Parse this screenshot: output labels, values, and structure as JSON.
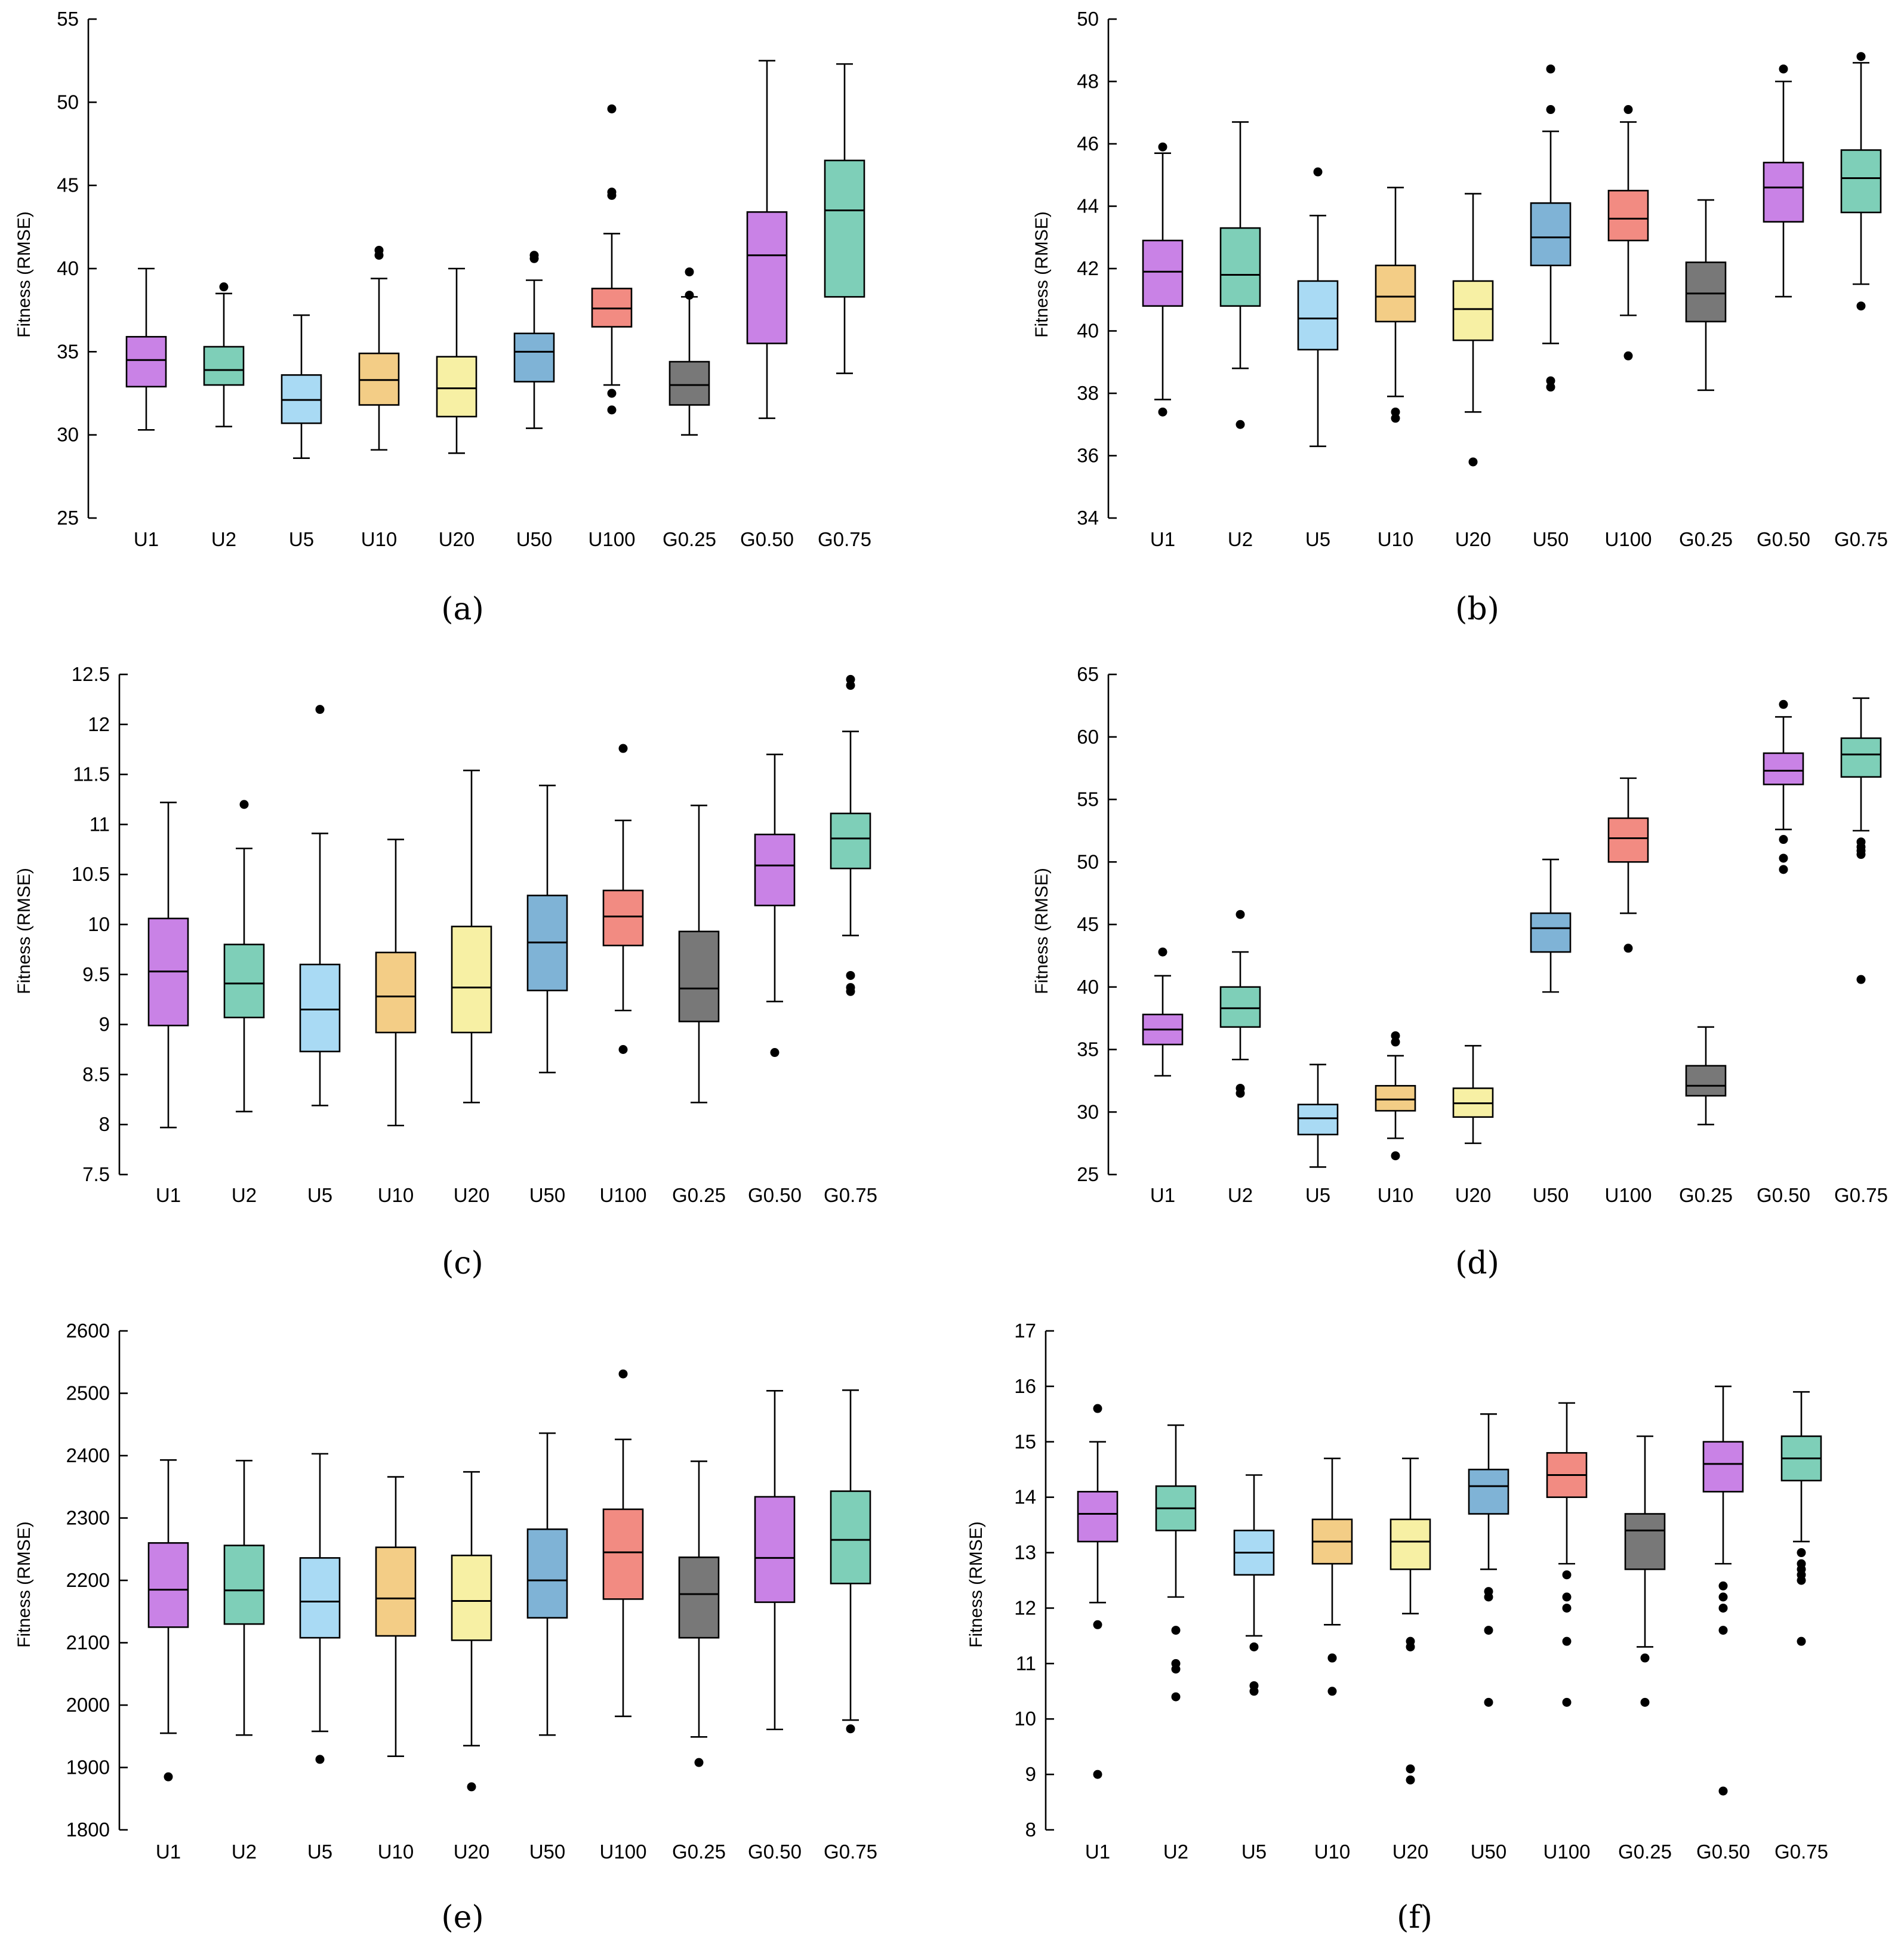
{
  "colors": {
    "purple": "#c982e6",
    "teal": "#7ecfb8",
    "lightblue": "#a9daf4",
    "orange": "#f3cd86",
    "yellow": "#f7f0a4",
    "blue": "#7fb3d6",
    "red": "#f28b82",
    "gray": "#787878"
  },
  "series_colors": [
    "purple",
    "teal",
    "lightblue",
    "orange",
    "yellow",
    "blue",
    "red",
    "gray",
    "purple",
    "teal"
  ],
  "chart_data": [
    {
      "panel": "(a)",
      "type": "box",
      "ylabel": "Fitness (RMSE)",
      "ylim": [
        25,
        55
      ],
      "yticks": [
        "25",
        "30",
        "35",
        "40",
        "45",
        "50",
        "55"
      ],
      "categories": [
        "U1",
        "U2",
        "U5",
        "U10",
        "U20",
        "U50",
        "U100",
        "G0.25",
        "G0.50",
        "G0.75"
      ],
      "boxes": [
        {
          "min": 30.3,
          "q1": 32.9,
          "median": 34.5,
          "q3": 35.9,
          "max": 40.0,
          "outliers": []
        },
        {
          "min": 30.5,
          "q1": 33.0,
          "median": 33.9,
          "q3": 35.3,
          "max": 38.5,
          "outliers": [
            38.9
          ]
        },
        {
          "min": 28.6,
          "q1": 30.7,
          "median": 32.1,
          "q3": 33.6,
          "max": 37.2,
          "outliers": []
        },
        {
          "min": 29.1,
          "q1": 31.8,
          "median": 33.3,
          "q3": 34.9,
          "max": 39.4,
          "outliers": [
            40.8,
            41.1
          ]
        },
        {
          "min": 28.9,
          "q1": 31.1,
          "median": 32.8,
          "q3": 34.7,
          "max": 40.0,
          "outliers": []
        },
        {
          "min": 30.4,
          "q1": 33.2,
          "median": 35.0,
          "q3": 36.1,
          "max": 39.3,
          "outliers": [
            40.6,
            40.8
          ]
        },
        {
          "min": 33.0,
          "q1": 36.5,
          "median": 37.6,
          "q3": 38.8,
          "max": 42.1,
          "outliers": [
            31.5,
            32.5,
            44.4,
            44.6,
            49.6
          ]
        },
        {
          "min": 30.0,
          "q1": 31.8,
          "median": 33.0,
          "q3": 34.4,
          "max": 38.3,
          "outliers": [
            38.4,
            39.8
          ]
        },
        {
          "min": 31.0,
          "q1": 35.5,
          "median": 40.8,
          "q3": 43.4,
          "max": 52.5,
          "outliers": []
        },
        {
          "min": 33.7,
          "q1": 38.3,
          "median": 43.5,
          "q3": 46.5,
          "max": 52.3,
          "outliers": []
        }
      ]
    },
    {
      "panel": "(b)",
      "type": "box",
      "ylabel": "Fitness (RMSE)",
      "ylim": [
        34,
        50
      ],
      "yticks": [
        "34",
        "36",
        "38",
        "40",
        "42",
        "44",
        "46",
        "48",
        "50"
      ],
      "categories": [
        "U1",
        "U2",
        "U5",
        "U10",
        "U20",
        "U50",
        "U100",
        "G0.25",
        "G0.50",
        "G0.75"
      ],
      "boxes": [
        {
          "min": 37.8,
          "q1": 40.8,
          "median": 41.9,
          "q3": 42.9,
          "max": 45.7,
          "outliers": [
            37.4,
            45.9
          ]
        },
        {
          "min": 38.8,
          "q1": 40.8,
          "median": 41.8,
          "q3": 43.3,
          "max": 46.7,
          "outliers": [
            37.0
          ]
        },
        {
          "min": 36.3,
          "q1": 39.4,
          "median": 40.4,
          "q3": 41.6,
          "max": 43.7,
          "outliers": [
            45.1
          ]
        },
        {
          "min": 37.9,
          "q1": 40.3,
          "median": 41.1,
          "q3": 42.1,
          "max": 44.6,
          "outliers": [
            37.2,
            37.4
          ]
        },
        {
          "min": 37.4,
          "q1": 39.7,
          "median": 40.7,
          "q3": 41.6,
          "max": 44.4,
          "outliers": [
            35.8
          ]
        },
        {
          "min": 39.6,
          "q1": 42.1,
          "median": 43.0,
          "q3": 44.1,
          "max": 46.4,
          "outliers": [
            38.2,
            38.4,
            47.1,
            48.4
          ]
        },
        {
          "min": 40.5,
          "q1": 42.9,
          "median": 43.6,
          "q3": 44.5,
          "max": 46.7,
          "outliers": [
            39.2,
            47.1
          ]
        },
        {
          "min": 38.1,
          "q1": 40.3,
          "median": 41.2,
          "q3": 42.2,
          "max": 44.2,
          "outliers": []
        },
        {
          "min": 41.1,
          "q1": 43.5,
          "median": 44.6,
          "q3": 45.4,
          "max": 48.0,
          "outliers": [
            48.4
          ]
        },
        {
          "min": 41.5,
          "q1": 43.8,
          "median": 44.9,
          "q3": 45.8,
          "max": 48.6,
          "outliers": [
            40.8,
            48.8
          ]
        }
      ]
    },
    {
      "panel": "(c)",
      "type": "box",
      "ylabel": "Fitness (RMSE)",
      "ylim": [
        7.5,
        12.5
      ],
      "yticks": [
        "7.5",
        "8",
        "8.5",
        "9",
        "9.5",
        "10",
        "10.5",
        "11",
        "11.5",
        "12",
        "12.5"
      ],
      "categories": [
        "U1",
        "U2",
        "U5",
        "U10",
        "U20",
        "U50",
        "U100",
        "G0.25",
        "G0.50",
        "G0.75"
      ],
      "boxes": [
        {
          "min": 7.97,
          "q1": 8.99,
          "median": 9.53,
          "q3": 10.06,
          "max": 11.22,
          "outliers": []
        },
        {
          "min": 8.13,
          "q1": 9.07,
          "median": 9.41,
          "q3": 9.8,
          "max": 10.76,
          "outliers": [
            11.2
          ]
        },
        {
          "min": 8.19,
          "q1": 8.73,
          "median": 9.15,
          "q3": 9.6,
          "max": 10.91,
          "outliers": [
            12.15
          ]
        },
        {
          "min": 7.99,
          "q1": 8.92,
          "median": 9.28,
          "q3": 9.72,
          "max": 10.85,
          "outliers": []
        },
        {
          "min": 8.22,
          "q1": 8.92,
          "median": 9.37,
          "q3": 9.98,
          "max": 11.54,
          "outliers": []
        },
        {
          "min": 8.52,
          "q1": 9.34,
          "median": 9.82,
          "q3": 10.29,
          "max": 11.39,
          "outliers": []
        },
        {
          "min": 9.14,
          "q1": 9.79,
          "median": 10.08,
          "q3": 10.34,
          "max": 11.04,
          "outliers": [
            8.75,
            11.76
          ]
        },
        {
          "min": 8.22,
          "q1": 9.03,
          "median": 9.36,
          "q3": 9.93,
          "max": 11.19,
          "outliers": []
        },
        {
          "min": 9.23,
          "q1": 10.19,
          "median": 10.59,
          "q3": 10.9,
          "max": 11.7,
          "outliers": [
            8.72
          ]
        },
        {
          "min": 9.89,
          "q1": 10.56,
          "median": 10.86,
          "q3": 11.11,
          "max": 11.93,
          "outliers": [
            9.33,
            9.37,
            9.49,
            12.39,
            12.45
          ]
        }
      ]
    },
    {
      "panel": "(d)",
      "type": "box",
      "ylabel": "Fitness (RMSE)",
      "ylim": [
        25,
        65
      ],
      "yticks": [
        "25",
        "30",
        "35",
        "40",
        "45",
        "50",
        "55",
        "60",
        "65"
      ],
      "categories": [
        "U1",
        "U2",
        "U5",
        "U10",
        "U20",
        "U50",
        "U100",
        "G0.25",
        "G0.50",
        "G0.75"
      ],
      "boxes": [
        {
          "min": 32.9,
          "q1": 35.4,
          "median": 36.6,
          "q3": 37.8,
          "max": 40.9,
          "outliers": [
            42.8
          ]
        },
        {
          "min": 34.2,
          "q1": 36.8,
          "median": 38.3,
          "q3": 40.0,
          "max": 42.8,
          "outliers": [
            31.5,
            31.9,
            45.8
          ]
        },
        {
          "min": 25.6,
          "q1": 28.2,
          "median": 29.5,
          "q3": 30.6,
          "max": 33.8,
          "outliers": []
        },
        {
          "min": 27.9,
          "q1": 30.1,
          "median": 31.0,
          "q3": 32.1,
          "max": 34.5,
          "outliers": [
            26.5,
            35.6,
            36.1
          ]
        },
        {
          "min": 27.5,
          "q1": 29.6,
          "median": 30.7,
          "q3": 31.9,
          "max": 35.3,
          "outliers": []
        },
        {
          "min": 39.6,
          "q1": 42.8,
          "median": 44.7,
          "q3": 45.9,
          "max": 50.2,
          "outliers": []
        },
        {
          "min": 45.9,
          "q1": 50.0,
          "median": 51.9,
          "q3": 53.5,
          "max": 56.7,
          "outliers": [
            43.1
          ]
        },
        {
          "min": 29.0,
          "q1": 31.3,
          "median": 32.1,
          "q3": 33.7,
          "max": 36.8,
          "outliers": []
        },
        {
          "min": 52.6,
          "q1": 56.2,
          "median": 57.3,
          "q3": 58.7,
          "max": 61.6,
          "outliers": [
            49.4,
            50.3,
            51.8,
            62.6
          ]
        },
        {
          "min": 52.5,
          "q1": 56.8,
          "median": 58.6,
          "q3": 59.9,
          "max": 63.1,
          "outliers": [
            40.6,
            50.6,
            50.9,
            51.2,
            51.6
          ]
        }
      ]
    },
    {
      "panel": "(e)",
      "type": "box",
      "ylabel": "Fitness (RMSE)",
      "ylim": [
        1800,
        2600
      ],
      "yticks": [
        "1800",
        "1900",
        "2000",
        "2100",
        "2200",
        "2300",
        "2400",
        "2500",
        "2600"
      ],
      "categories": [
        "U1",
        "U2",
        "U5",
        "U10",
        "U20",
        "U50",
        "U100",
        "G0.25",
        "G0.50",
        "G0.75"
      ],
      "boxes": [
        {
          "min": 1955,
          "q1": 2125,
          "median": 2185,
          "q3": 2260,
          "max": 2393,
          "outliers": [
            1885
          ]
        },
        {
          "min": 1952,
          "q1": 2130,
          "median": 2184,
          "q3": 2256,
          "max": 2392,
          "outliers": []
        },
        {
          "min": 1958,
          "q1": 2108,
          "median": 2166,
          "q3": 2236,
          "max": 2403,
          "outliers": [
            1913
          ]
        },
        {
          "min": 1918,
          "q1": 2111,
          "median": 2171,
          "q3": 2253,
          "max": 2366,
          "outliers": []
        },
        {
          "min": 1935,
          "q1": 2104,
          "median": 2167,
          "q3": 2240,
          "max": 2374,
          "outliers": [
            1869
          ]
        },
        {
          "min": 1952,
          "q1": 2140,
          "median": 2200,
          "q3": 2282,
          "max": 2436,
          "outliers": []
        },
        {
          "min": 1982,
          "q1": 2170,
          "median": 2245,
          "q3": 2314,
          "max": 2426,
          "outliers": [
            2531
          ]
        },
        {
          "min": 1949,
          "q1": 2108,
          "median": 2178,
          "q3": 2237,
          "max": 2391,
          "outliers": [
            1908
          ]
        },
        {
          "min": 1961,
          "q1": 2165,
          "median": 2236,
          "q3": 2334,
          "max": 2504,
          "outliers": []
        },
        {
          "min": 1976,
          "q1": 2195,
          "median": 2265,
          "q3": 2343,
          "max": 2505,
          "outliers": [
            1962
          ]
        }
      ]
    },
    {
      "panel": "(f)",
      "type": "box",
      "ylabel": "Fitness (RMSE)",
      "ylim": [
        8,
        17
      ],
      "yticks": [
        "8",
        "9",
        "10",
        "11",
        "12",
        "13",
        "14",
        "15",
        "16",
        "17"
      ],
      "categories": [
        "U1",
        "U2",
        "U5",
        "U10",
        "U20",
        "U50",
        "U100",
        "G0.25",
        "G0.50",
        "G0.75"
      ],
      "boxes": [
        {
          "min": 12.1,
          "q1": 13.2,
          "median": 13.7,
          "q3": 14.1,
          "max": 15.0,
          "outliers": [
            9.0,
            11.7,
            15.6
          ]
        },
        {
          "min": 12.2,
          "q1": 13.4,
          "median": 13.8,
          "q3": 14.2,
          "max": 15.3,
          "outliers": [
            10.4,
            10.9,
            11.0,
            11.6
          ]
        },
        {
          "min": 11.5,
          "q1": 12.6,
          "median": 13.0,
          "q3": 13.4,
          "max": 14.4,
          "outliers": [
            10.5,
            10.6,
            11.3
          ]
        },
        {
          "min": 11.7,
          "q1": 12.8,
          "median": 13.2,
          "q3": 13.6,
          "max": 14.7,
          "outliers": [
            10.5,
            11.1,
            11.1
          ]
        },
        {
          "min": 11.9,
          "q1": 12.7,
          "median": 13.2,
          "q3": 13.6,
          "max": 14.7,
          "outliers": [
            8.9,
            9.1,
            11.3,
            11.4
          ]
        },
        {
          "min": 12.7,
          "q1": 13.7,
          "median": 14.2,
          "q3": 14.5,
          "max": 15.5,
          "outliers": [
            10.3,
            11.6,
            12.2,
            12.3
          ]
        },
        {
          "min": 12.8,
          "q1": 14.0,
          "median": 14.4,
          "q3": 14.8,
          "max": 15.7,
          "outliers": [
            10.3,
            11.4,
            12.0,
            12.2,
            12.6
          ]
        },
        {
          "min": 11.3,
          "q1": 12.7,
          "median": 13.4,
          "q3": 13.7,
          "max": 15.1,
          "outliers": [
            10.3,
            11.1
          ]
        },
        {
          "min": 12.8,
          "q1": 14.1,
          "median": 14.6,
          "q3": 15.0,
          "max": 16.0,
          "outliers": [
            8.7,
            11.6,
            12.0,
            12.2,
            12.4
          ]
        },
        {
          "min": 13.2,
          "q1": 14.3,
          "median": 14.7,
          "q3": 15.1,
          "max": 15.9,
          "outliers": [
            11.4,
            12.5,
            12.6,
            12.7,
            12.8,
            13.0
          ]
        }
      ]
    }
  ]
}
